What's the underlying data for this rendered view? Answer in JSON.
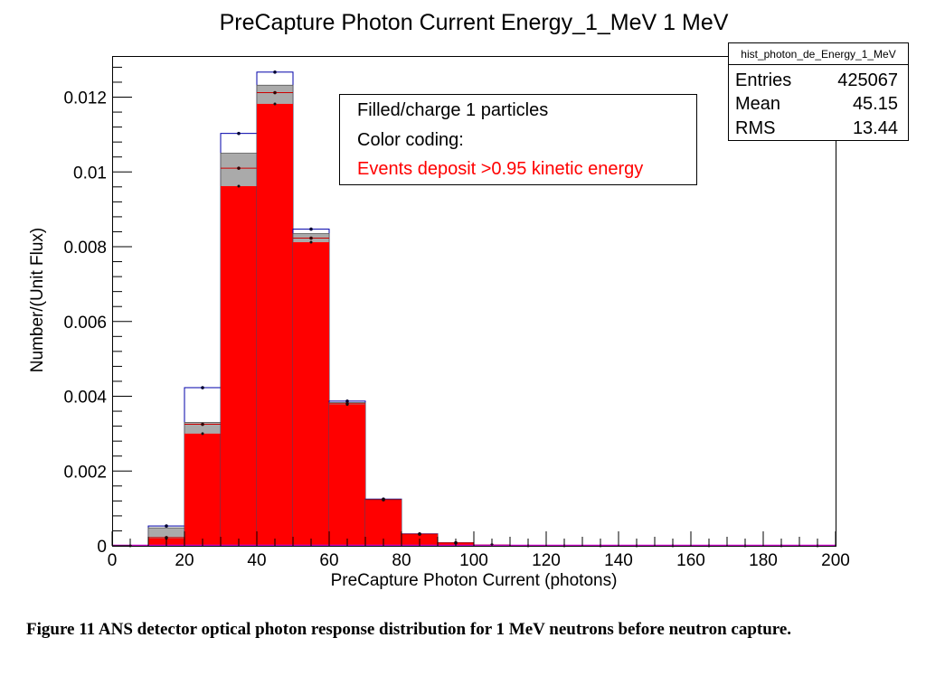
{
  "chart_data": {
    "type": "bar",
    "title": "PreCapture Photon Current Energy_1_MeV 1 MeV",
    "xlabel": "PreCapture Photon Current (photons)",
    "ylabel": "Number/(Unit Flux)",
    "xlim": [
      0,
      200
    ],
    "ylim": [
      0,
      0.0131
    ],
    "bin_width": 10,
    "x_ticks": [
      0,
      20,
      40,
      60,
      80,
      100,
      120,
      140,
      160,
      180,
      200
    ],
    "x_tick_labels": [
      "0",
      "20",
      "40",
      "60",
      "80",
      "100",
      "120",
      "140",
      "160",
      "180",
      "200"
    ],
    "y_ticks": [
      0,
      0.002,
      0.004,
      0.006,
      0.008,
      0.01,
      0.012
    ],
    "y_tick_labels": [
      "0",
      "0.002",
      "0.004",
      "0.006",
      "0.008",
      "0.01",
      "0.012"
    ],
    "bin_centers": [
      5,
      15,
      25,
      35,
      45,
      55,
      65,
      75,
      85,
      95,
      105,
      115,
      125,
      135,
      145,
      155,
      165,
      175,
      185,
      195
    ],
    "series": [
      {
        "values": [
          0,
          0.00053,
          0.00423,
          0.01103,
          0.01267,
          0.00847,
          0.00387,
          0.00125,
          0.00032,
          8e-05,
          2e-05,
          0,
          0,
          0,
          0,
          0,
          0,
          0,
          0,
          0
        ],
        "color": "#0000aa",
        "style": "outline"
      },
      {
        "values": [
          0,
          0.00048,
          0.0033,
          0.0105,
          0.01232,
          0.00835,
          0.00383,
          0.00124,
          0.00031,
          8e-05,
          2e-05,
          0,
          0,
          0,
          0,
          0,
          0,
          0,
          0,
          0
        ],
        "color": "#aaaaaa",
        "style": "filled"
      },
      {
        "values": [
          0,
          0.00022,
          0.00325,
          0.0101,
          0.01212,
          0.00823,
          0.0038,
          0.00123,
          0.00031,
          8e-05,
          2e-05,
          0,
          0,
          0,
          0,
          0,
          0,
          0,
          0,
          0
        ],
        "color": "#cc0000",
        "style": "marker"
      },
      {
        "values": [
          0,
          0.0002,
          0.003,
          0.00962,
          0.01182,
          0.00812,
          0.00378,
          0.00123,
          0.00031,
          8e-05,
          2e-05,
          0,
          0,
          0,
          0,
          0,
          0,
          0,
          0,
          0
        ],
        "color": "#ff0000",
        "style": "filled"
      }
    ],
    "legend": {
      "placement": "top-center",
      "lines": [
        {
          "text": "Filled/charge 1 particles",
          "color": "#000000"
        },
        {
          "text": "Color coding:",
          "color": "#000000"
        },
        {
          "text": "Events deposit >0.95 kinetic energy",
          "color": "#ff0000"
        }
      ]
    },
    "stats_box": {
      "placement": "top-right",
      "name": "hist_photon_de_Energy_1_MeV",
      "entries": [
        {
          "key": "Entries",
          "value": "425067"
        },
        {
          "key": "Mean",
          "value": "45.15"
        },
        {
          "key": "RMS",
          "value": "13.44"
        }
      ]
    }
  },
  "caption": "Figure 11  ANS detector optical photon response distribution for 1 MeV neutrons before neutron capture."
}
